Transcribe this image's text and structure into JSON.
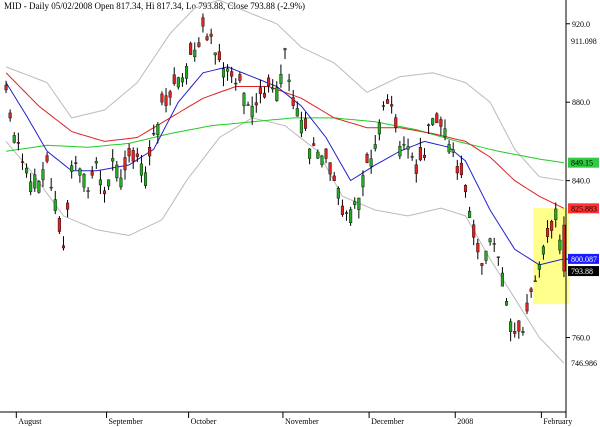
{
  "chart_data": {
    "type": "candlestick",
    "title": "MID - Daily 05/02/2008 Open 817.34, Hi 817.34, Lo 793.88, Close 793.88 (-2.9%)",
    "ylim": [
      722,
      926
    ],
    "y_ticks": [
      {
        "value": 920,
        "label": "920.0"
      },
      {
        "value": 880,
        "label": "880.0"
      },
      {
        "value": 840,
        "label": "840.0"
      },
      {
        "value": 800,
        "label": "800.0"
      },
      {
        "value": 760,
        "label": "760.0"
      }
    ],
    "x_labels": [
      {
        "index": 3,
        "label": "August"
      },
      {
        "index": 25,
        "label": "September"
      },
      {
        "index": 45,
        "label": "October"
      },
      {
        "index": 68,
        "label": "November"
      },
      {
        "index": 89,
        "label": "December"
      },
      {
        "index": 110,
        "label": "2008"
      },
      {
        "index": 131,
        "label": "February"
      }
    ],
    "price_labels": [
      {
        "value": 911.098,
        "label": "911.098",
        "bg": "#ffffff",
        "fg": "#000000"
      },
      {
        "value": 849.15,
        "label": "849.15",
        "bg": "#2ecc40",
        "fg": "#000000"
      },
      {
        "value": 825.883,
        "label": "825.883",
        "bg": "#ff3333",
        "fg": "#000000"
      },
      {
        "value": 800.087,
        "label": "800.087",
        "bg": "#1a1aff",
        "fg": "#ffffff"
      },
      {
        "value": 793.88,
        "label": "793.88",
        "bg": "#000000",
        "fg": "#ffffff"
      },
      {
        "value": 746.986,
        "label": "746.986",
        "bg": "#ffffff",
        "fg": "#000000"
      }
    ],
    "highlight": {
      "x_start": 128.5,
      "x_end": 137.2,
      "y_top": 826,
      "y_bottom": 777,
      "color": "#ffff66"
    },
    "series": [
      {
        "name": "",
        "type": "candles",
        "colors": {
          "up": "#22aa22",
          "down": "#dd2222"
        }
      },
      {
        "name": "",
        "type": "line",
        "color": "#2222cc"
      },
      {
        "name": "",
        "type": "line",
        "color": "#dd2222"
      },
      {
        "name": "",
        "type": "line",
        "color": "#22cc22"
      },
      {
        "name": "",
        "type": "band",
        "color": "#bbbbbb"
      }
    ],
    "close_anchors": [
      [
        0,
        885
      ],
      [
        2,
        862
      ],
      [
        4,
        848
      ],
      [
        6,
        842
      ],
      [
        8,
        838
      ],
      [
        10,
        848
      ],
      [
        12,
        828
      ],
      [
        14,
        805
      ],
      [
        16,
        850
      ],
      [
        18,
        843
      ],
      [
        20,
        838
      ],
      [
        22,
        848
      ],
      [
        24,
        835
      ],
      [
        26,
        848
      ],
      [
        28,
        842
      ],
      [
        30,
        850
      ],
      [
        32,
        855
      ],
      [
        34,
        845
      ],
      [
        36,
        860
      ],
      [
        38,
        878
      ],
      [
        40,
        883
      ],
      [
        42,
        890
      ],
      [
        44,
        898
      ],
      [
        46,
        905
      ],
      [
        48,
        918
      ],
      [
        50,
        912
      ],
      [
        52,
        900
      ],
      [
        54,
        898
      ],
      [
        56,
        890
      ],
      [
        58,
        885
      ],
      [
        60,
        880
      ],
      [
        62,
        883
      ],
      [
        64,
        890
      ],
      [
        66,
        888
      ],
      [
        68,
        905
      ],
      [
        70,
        878
      ],
      [
        72,
        870
      ],
      [
        74,
        860
      ],
      [
        76,
        855
      ],
      [
        78,
        850
      ],
      [
        80,
        840
      ],
      [
        82,
        825
      ],
      [
        84,
        822
      ],
      [
        86,
        835
      ],
      [
        88,
        848
      ],
      [
        90,
        856
      ],
      [
        92,
        880
      ],
      [
        94,
        874
      ],
      [
        96,
        860
      ],
      [
        98,
        856
      ],
      [
        100,
        843
      ],
      [
        102,
        855
      ],
      [
        104,
        875
      ],
      [
        106,
        868
      ],
      [
        108,
        860
      ],
      [
        110,
        846
      ],
      [
        112,
        835
      ],
      [
        114,
        815
      ],
      [
        116,
        795
      ],
      [
        118,
        808
      ],
      [
        120,
        800
      ],
      [
        122,
        780
      ],
      [
        124,
        764
      ],
      [
        126,
        762
      ],
      [
        128,
        782
      ],
      [
        130,
        796
      ],
      [
        132,
        810
      ],
      [
        134,
        825
      ],
      [
        135,
        812
      ],
      [
        136,
        793.88
      ]
    ],
    "ma_fast_anchors": [
      [
        0,
        890
      ],
      [
        5,
        873
      ],
      [
        10,
        855
      ],
      [
        16,
        845
      ],
      [
        22,
        845
      ],
      [
        30,
        848
      ],
      [
        36,
        856
      ],
      [
        42,
        880
      ],
      [
        48,
        895
      ],
      [
        54,
        898
      ],
      [
        60,
        893
      ],
      [
        66,
        888
      ],
      [
        72,
        878
      ],
      [
        78,
        862
      ],
      [
        84,
        840
      ],
      [
        90,
        848
      ],
      [
        96,
        855
      ],
      [
        102,
        860
      ],
      [
        108,
        857
      ],
      [
        112,
        850
      ],
      [
        118,
        825
      ],
      [
        124,
        805
      ],
      [
        130,
        797
      ],
      [
        136,
        800.087
      ]
    ],
    "ma_mid_anchors": [
      [
        0,
        895
      ],
      [
        8,
        878
      ],
      [
        16,
        865
      ],
      [
        24,
        860
      ],
      [
        32,
        862
      ],
      [
        40,
        872
      ],
      [
        48,
        882
      ],
      [
        56,
        888
      ],
      [
        64,
        888
      ],
      [
        72,
        882
      ],
      [
        80,
        872
      ],
      [
        88,
        867
      ],
      [
        96,
        867
      ],
      [
        104,
        864
      ],
      [
        112,
        860
      ],
      [
        118,
        852
      ],
      [
        124,
        840
      ],
      [
        130,
        832
      ],
      [
        136,
        825.883
      ]
    ],
    "ma_slow_anchors": [
      [
        0,
        855
      ],
      [
        10,
        858
      ],
      [
        20,
        857
      ],
      [
        30,
        859
      ],
      [
        40,
        864
      ],
      [
        50,
        868
      ],
      [
        60,
        870
      ],
      [
        70,
        872
      ],
      [
        80,
        872
      ],
      [
        90,
        870
      ],
      [
        100,
        866
      ],
      [
        110,
        860
      ],
      [
        120,
        855
      ],
      [
        130,
        851
      ],
      [
        136,
        849.15
      ]
    ],
    "band_upper_anchors": [
      [
        0,
        898
      ],
      [
        10,
        890
      ],
      [
        16,
        872
      ],
      [
        24,
        876
      ],
      [
        32,
        890
      ],
      [
        40,
        915
      ],
      [
        46,
        928
      ],
      [
        52,
        932
      ],
      [
        60,
        925
      ],
      [
        66,
        920
      ],
      [
        72,
        908
      ],
      [
        80,
        900
      ],
      [
        88,
        885
      ],
      [
        96,
        893
      ],
      [
        104,
        895
      ],
      [
        112,
        890
      ],
      [
        118,
        880
      ],
      [
        124,
        856
      ],
      [
        130,
        842
      ],
      [
        136,
        840
      ]
    ],
    "band_lower_anchors": [
      [
        0,
        860
      ],
      [
        6,
        845
      ],
      [
        14,
        822
      ],
      [
        22,
        815
      ],
      [
        30,
        812
      ],
      [
        38,
        820
      ],
      [
        44,
        840
      ],
      [
        52,
        862
      ],
      [
        60,
        872
      ],
      [
        68,
        868
      ],
      [
        76,
        855
      ],
      [
        82,
        832
      ],
      [
        90,
        825
      ],
      [
        98,
        822
      ],
      [
        106,
        826
      ],
      [
        112,
        822
      ],
      [
        118,
        800
      ],
      [
        124,
        780
      ],
      [
        130,
        760
      ],
      [
        136,
        746.986
      ]
    ]
  }
}
